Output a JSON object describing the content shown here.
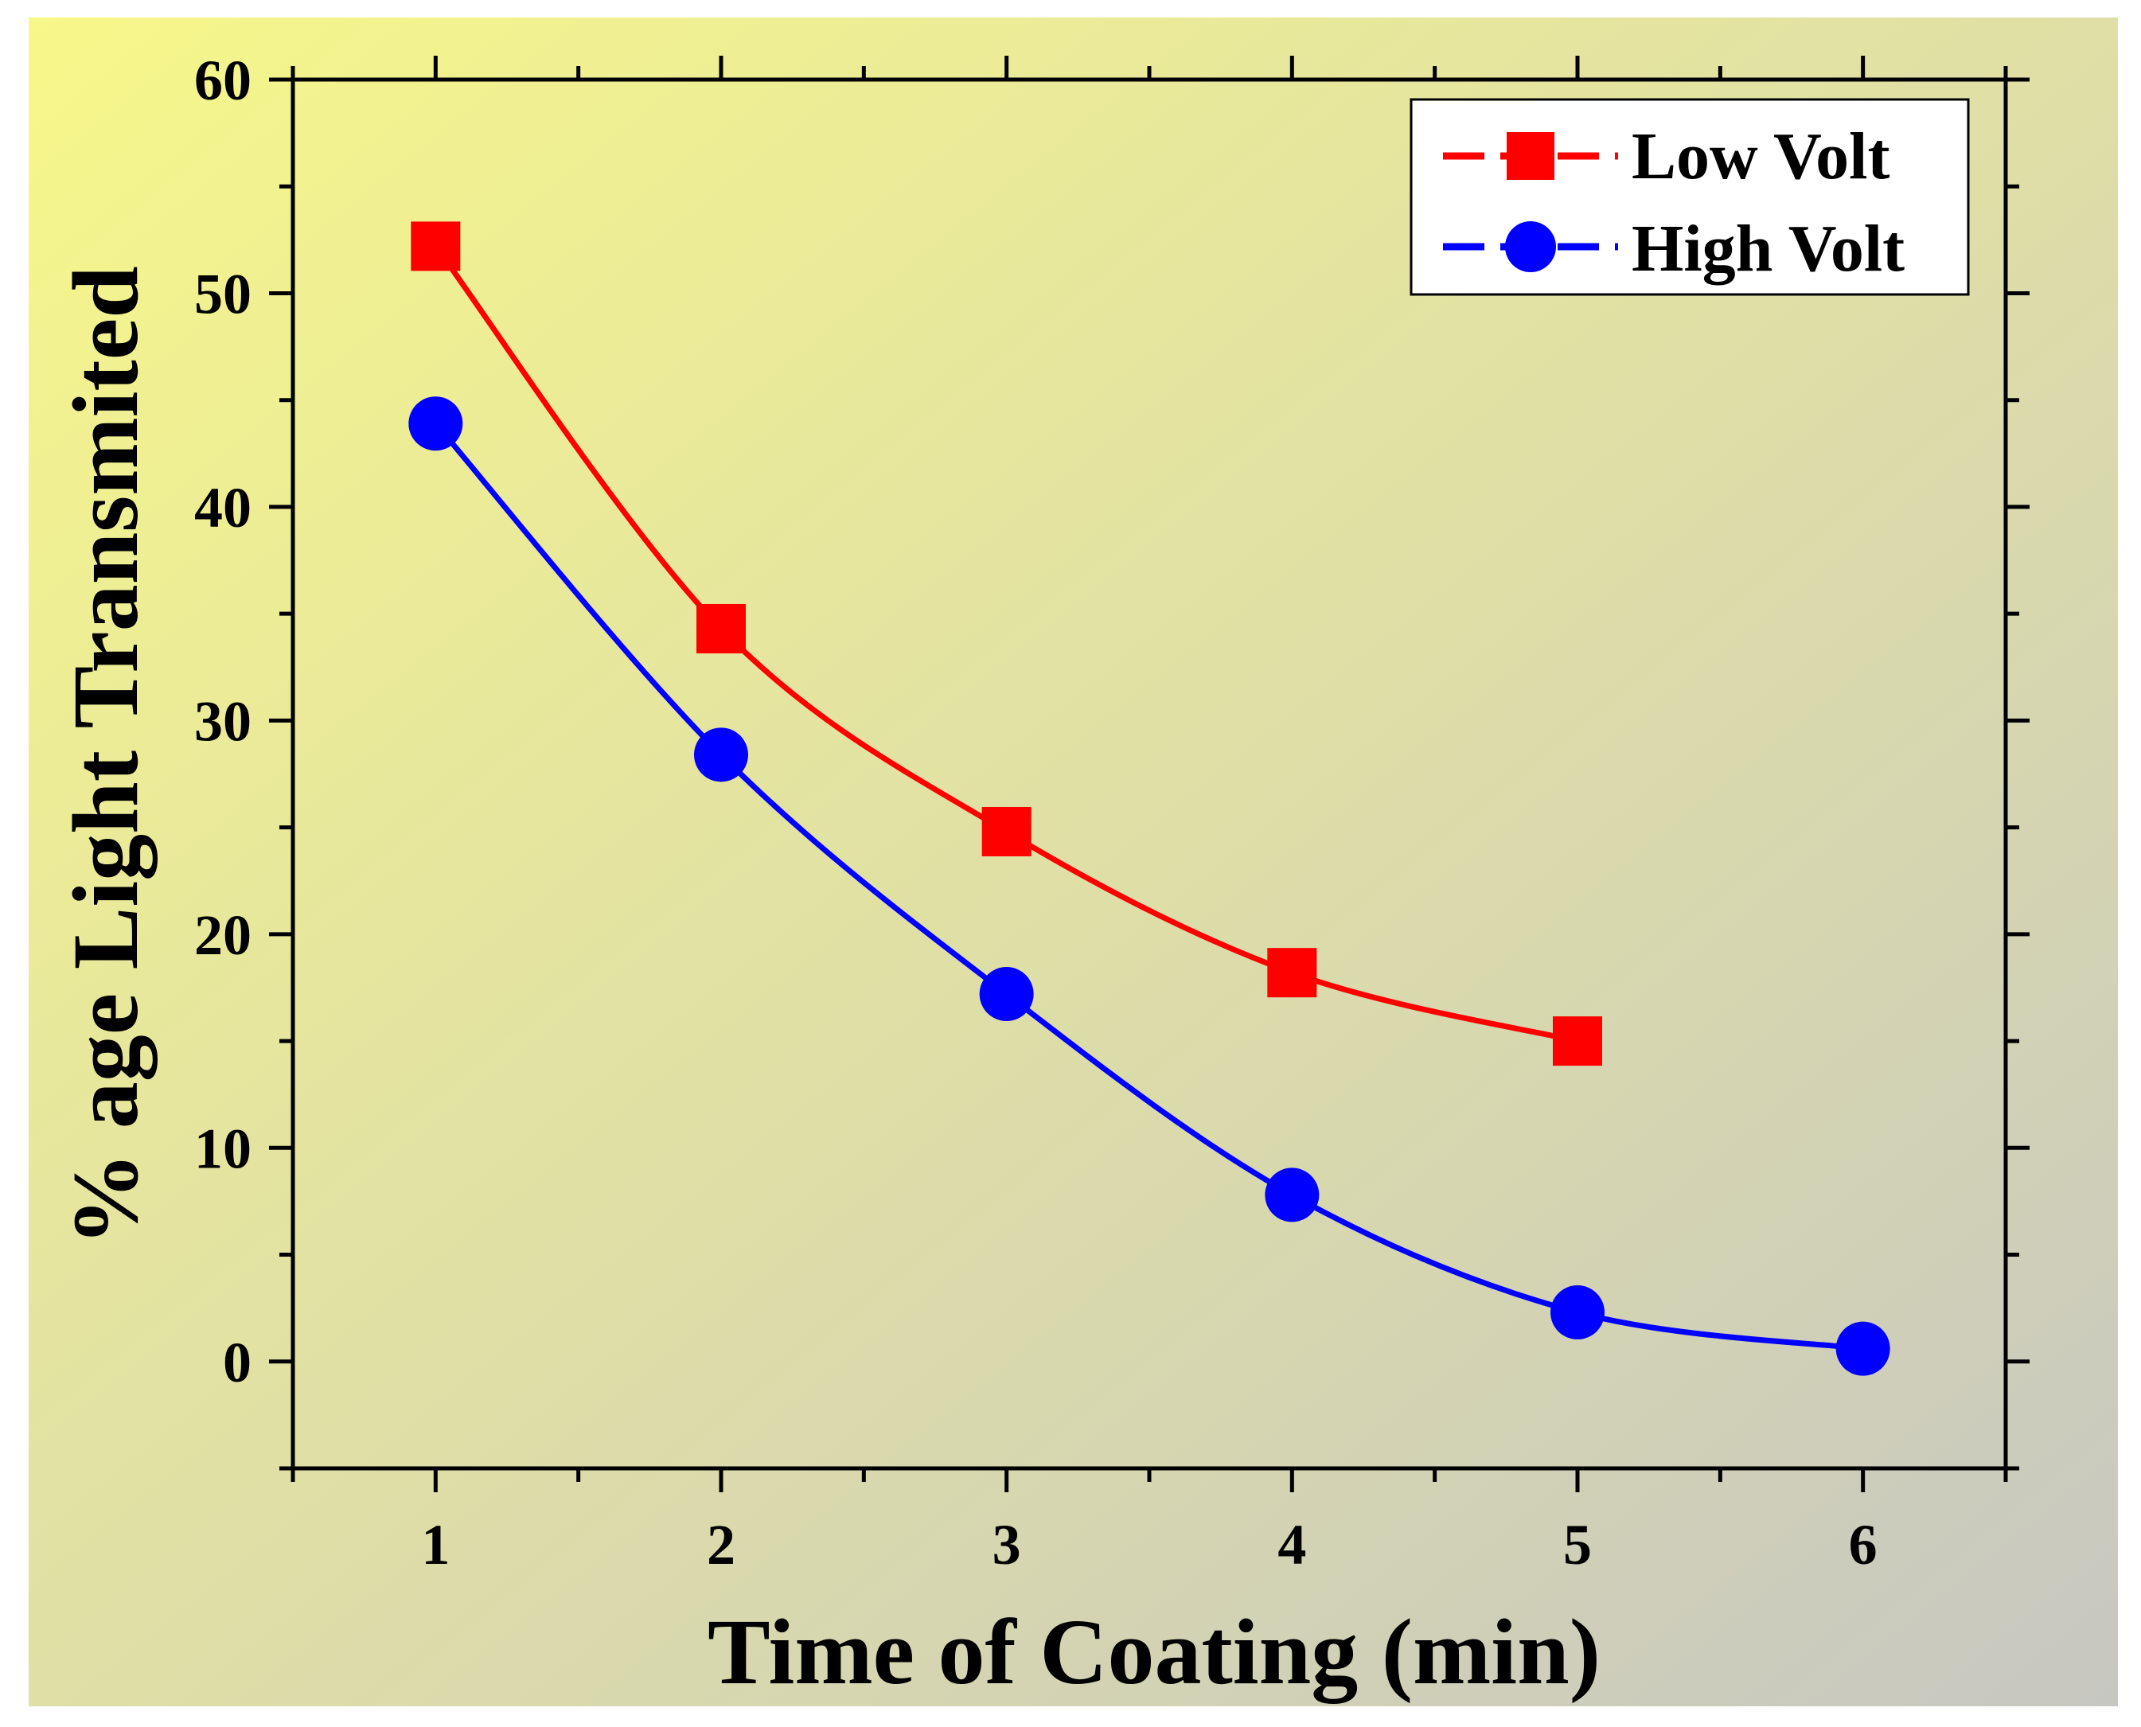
{
  "chart_data": {
    "type": "line",
    "title": "",
    "xlabel": "Time of Coating (min)",
    "ylabel": "% age Light Transmited",
    "xlim": [
      0.5,
      6.5
    ],
    "ylim": [
      -5,
      60
    ],
    "xticks": [
      1,
      2,
      3,
      4,
      5,
      6
    ],
    "yticks": [
      0,
      10,
      20,
      30,
      40,
      50,
      60
    ],
    "xtick_labels": [
      "1",
      "2",
      "3",
      "4",
      "5",
      "6"
    ],
    "ytick_labels": [
      "0",
      "10",
      "20",
      "30",
      "40",
      "50",
      "60"
    ],
    "grid": false,
    "legend_position": "top-right",
    "series": [
      {
        "name": "Low Volt",
        "marker": "square",
        "color": "#ff0000",
        "x": [
          1,
          2,
          3,
          4,
          5
        ],
        "values": [
          52.2,
          34.3,
          24.8,
          18.2,
          15.0
        ]
      },
      {
        "name": "High Volt",
        "marker": "circle",
        "color": "#0000ff",
        "x": [
          1,
          2,
          3,
          4,
          5,
          6
        ],
        "values": [
          43.9,
          28.4,
          17.2,
          7.8,
          2.3,
          0.6
        ]
      }
    ]
  },
  "colors": {
    "background_top_left": "#f7f78a",
    "background_bottom_right": "#c7c7c2",
    "axis": "#000000"
  }
}
